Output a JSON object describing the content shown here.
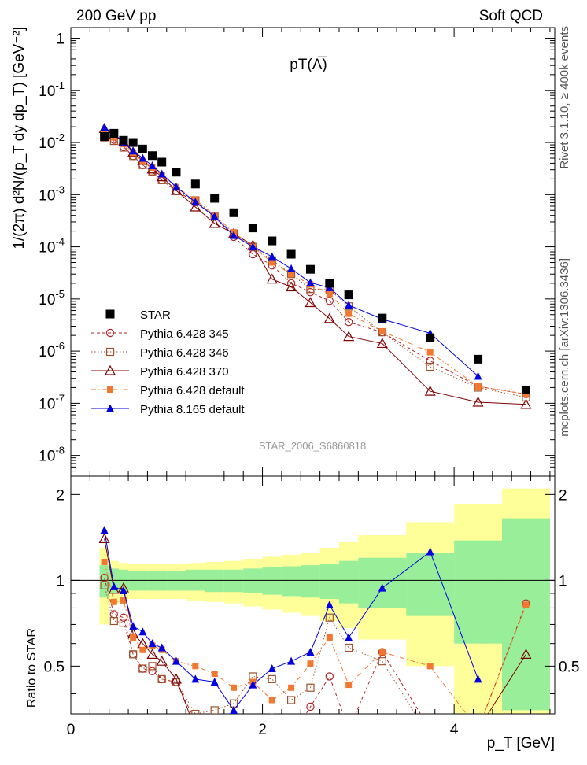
{
  "header": {
    "left": "200 GeV pp",
    "right": "Soft QCD",
    "side_right_top": "Rivet 3.1.10, ≥ 400k events",
    "side_right_bottom": "mcplots.cern.ch [arXiv:1306.3436]"
  },
  "chart_data": [
    {
      "type": "scatter",
      "panel": "main",
      "title": "pT(Λ̅)",
      "analysis_label": "STAR_2006_S6860818",
      "xlabel": "p_T [GeV]",
      "ylabel": "1/(2π) d²N/(p_T dy dp_T) [GeV⁻²]",
      "xlim": [
        0,
        5.05
      ],
      "ylim": [
        4e-09,
        1.6
      ],
      "yscale": "log",
      "y_tick_labels": [
        "10^-8",
        "10^-7",
        "10^-6",
        "10^-5",
        "10^-4",
        "10^-3",
        "10^-2",
        "10^-1",
        "1"
      ],
      "legend_position": "lower-left",
      "series": [
        {
          "name": "STAR",
          "color": "#000000",
          "marker": "square-filled",
          "line": "none",
          "x": [
            0.35,
            0.45,
            0.55,
            0.65,
            0.75,
            0.85,
            0.95,
            1.1,
            1.3,
            1.5,
            1.7,
            1.9,
            2.1,
            2.3,
            2.5,
            2.7,
            2.9,
            3.25,
            3.75,
            4.25,
            4.75
          ],
          "y": [
            0.013,
            0.015,
            0.011,
            0.01,
            0.0075,
            0.0056,
            0.0042,
            0.0027,
            0.0016,
            0.00085,
            0.00045,
            0.00023,
            0.00013,
            7.2e-05,
            3.7e-05,
            2e-05,
            1.2e-05,
            4.3e-06,
            1.8e-06,
            7e-07,
            1.8e-07
          ]
        },
        {
          "name": "Pythia 6.428 345",
          "color": "#b22222",
          "marker": "circle-open",
          "line": "dashed",
          "x": [
            0.35,
            0.45,
            0.55,
            0.65,
            0.75,
            0.85,
            0.95,
            1.1,
            1.3,
            1.5,
            1.7,
            1.9,
            2.1,
            2.3,
            2.5,
            2.7,
            2.9,
            3.25,
            3.75,
            4.25,
            4.75
          ],
          "y": [
            0.0133,
            0.0113,
            0.0083,
            0.0055,
            0.0037,
            0.0027,
            0.0019,
            0.00118,
            0.00072,
            0.00038,
            0.000155,
            7.2e-05,
            4.4e-05,
            2e-05,
            1.35e-05,
            9.2e-06,
            3.6e-06,
            2.3e-06,
            6.5e-07,
            2.1e-07,
            1.5e-07
          ]
        },
        {
          "name": "Pythia 6.428 346",
          "color": "#a0522d",
          "marker": "square-open",
          "line": "dotted",
          "x": [
            0.35,
            0.45,
            0.55,
            0.65,
            0.75,
            0.85,
            0.95,
            1.1,
            1.3,
            1.5,
            1.7,
            1.9,
            2.1,
            2.3,
            2.5,
            2.7,
            2.9,
            3.25,
            3.75,
            4.25,
            4.75
          ],
          "y": [
            0.0125,
            0.0107,
            0.008,
            0.0055,
            0.0037,
            0.0028,
            0.0019,
            0.00118,
            0.00078,
            0.00038,
            0.00018,
            0.0001,
            5.5e-05,
            3e-05,
            1.55e-05,
            1.5e-05,
            7.2e-06,
            2.3e-06,
            5e-07,
            2e-07,
            1.3e-07
          ]
        },
        {
          "name": "Pythia 6.428 370",
          "color": "#800000",
          "marker": "triangle-open",
          "line": "solid",
          "x": [
            0.35,
            0.45,
            0.55,
            0.65,
            0.75,
            0.85,
            0.95,
            1.1,
            1.3,
            1.5,
            1.7,
            1.9,
            2.1,
            2.3,
            2.5,
            2.7,
            2.9,
            3.25,
            3.75,
            4.25,
            4.75
          ],
          "y": [
            0.0185,
            0.014,
            0.0103,
            0.0065,
            0.0045,
            0.0031,
            0.0022,
            0.0012,
            0.00058,
            0.00028,
            0.00018,
            0.000107,
            2.4e-05,
            1.7e-05,
            8.5e-06,
            4.2e-06,
            1.9e-06,
            1.4e-06,
            1.7e-07,
            1.05e-07,
            9.5e-08
          ]
        },
        {
          "name": "Pythia 6.428 default",
          "color": "#f07830",
          "marker": "square-filled-small",
          "line": "dashdot",
          "x": [
            0.35,
            0.45,
            0.55,
            0.65,
            0.75,
            0.85,
            0.95,
            1.1,
            1.3,
            1.5,
            1.7,
            1.9,
            2.1,
            2.3,
            2.5,
            2.7,
            2.9,
            3.25,
            3.75,
            4.25,
            4.75
          ],
          "y": [
            0.015,
            0.0125,
            0.0093,
            0.0063,
            0.0043,
            0.0033,
            0.0024,
            0.0014,
            0.0008,
            0.0004,
            0.00019,
            0.0001,
            5e-05,
            3e-05,
            1.9e-05,
            1.25e-05,
            5.2e-06,
            2.4e-06,
            9.5e-07,
            2.1e-07,
            1.5e-07
          ]
        },
        {
          "name": "Pythia 8.165 default",
          "color": "#0000e0",
          "marker": "triangle-filled",
          "line": "solid",
          "x": [
            0.35,
            0.45,
            0.55,
            0.65,
            0.75,
            0.85,
            0.95,
            1.1,
            1.3,
            1.5,
            1.7,
            1.9,
            2.1,
            2.3,
            2.5,
            2.7,
            2.9,
            3.25,
            3.75,
            4.25
          ],
          "y": [
            0.0195,
            0.0145,
            0.0102,
            0.0069,
            0.005,
            0.0036,
            0.0025,
            0.0014,
            0.00072,
            0.00038,
            0.000165,
            0.0001,
            6.5e-05,
            3.8e-05,
            2.05e-05,
            1.65e-05,
            7.6e-06,
            4.1e-06,
            2.2e-06,
            3.3e-07
          ]
        }
      ]
    },
    {
      "type": "scatter",
      "panel": "ratio",
      "ylabel": "Ratio to STAR",
      "xlabel": "p_T [GeV]",
      "xlim": [
        0,
        5.05
      ],
      "ylim": [
        0.34,
        2.3
      ],
      "x_tick_labels": [
        "0",
        "2",
        "4"
      ],
      "y_tick_labels": [
        "0.5",
        "1",
        "2"
      ],
      "reference_line": 1,
      "uncertainty_bins": {
        "edges": [
          0.3,
          0.4,
          0.5,
          0.6,
          0.7,
          0.8,
          0.9,
          1.0,
          1.2,
          1.4,
          1.6,
          1.8,
          2.0,
          2.2,
          2.4,
          2.6,
          2.8,
          3.0,
          3.5,
          4.0,
          4.5,
          5.0
        ],
        "inner": [
          [
            0.87,
            1.13
          ],
          [
            0.9,
            1.1
          ],
          [
            0.91,
            1.09
          ],
          [
            0.92,
            1.08
          ],
          [
            0.92,
            1.08
          ],
          [
            0.92,
            1.08
          ],
          [
            0.92,
            1.08
          ],
          [
            0.92,
            1.08
          ],
          [
            0.92,
            1.09
          ],
          [
            0.91,
            1.09
          ],
          [
            0.91,
            1.09
          ],
          [
            0.9,
            1.1
          ],
          [
            0.89,
            1.11
          ],
          [
            0.88,
            1.12
          ],
          [
            0.87,
            1.13
          ],
          [
            0.86,
            1.14
          ],
          [
            0.83,
            1.17
          ],
          [
            0.8,
            1.2
          ],
          [
            0.75,
            1.25
          ],
          [
            0.6,
            1.38
          ],
          [
            0.35,
            1.65
          ]
        ],
        "outer": [
          [
            0.7,
            1.3
          ],
          [
            0.83,
            1.17
          ],
          [
            0.85,
            1.15
          ],
          [
            0.86,
            1.14
          ],
          [
            0.86,
            1.14
          ],
          [
            0.86,
            1.14
          ],
          [
            0.86,
            1.14
          ],
          [
            0.86,
            1.14
          ],
          [
            0.85,
            1.15
          ],
          [
            0.84,
            1.16
          ],
          [
            0.83,
            1.17
          ],
          [
            0.81,
            1.19
          ],
          [
            0.79,
            1.21
          ],
          [
            0.77,
            1.23
          ],
          [
            0.75,
            1.25
          ],
          [
            0.72,
            1.3
          ],
          [
            0.68,
            1.36
          ],
          [
            0.62,
            1.44
          ],
          [
            0.5,
            1.6
          ],
          [
            0.34,
            1.85
          ],
          [
            0.34,
            2.1
          ]
        ]
      },
      "series": [
        {
          "name": "Pythia 6.428 345",
          "color": "#b22222",
          "marker": "circle-open",
          "line": "dashed",
          "x": [
            0.35,
            0.45,
            0.55,
            0.65,
            0.75,
            0.85,
            0.95,
            1.1,
            1.3,
            1.5,
            1.7,
            1.9,
            2.1,
            2.3,
            2.5,
            2.7,
            2.9,
            3.25,
            3.75,
            4.25,
            4.75
          ],
          "y": [
            1.02,
            0.76,
            0.74,
            0.55,
            0.49,
            0.48,
            0.45,
            0.44,
            0.32,
            0.28,
            0.26,
            0.3,
            0.33,
            0.28,
            0.36,
            0.46,
            0.3,
            0.56,
            0.3,
            0.3,
            0.83
          ]
        },
        {
          "name": "Pythia 6.428 346",
          "color": "#a0522d",
          "marker": "square-open",
          "line": "dotted",
          "x": [
            0.35,
            0.45,
            0.55,
            0.65,
            0.75,
            0.85,
            0.95,
            1.1,
            1.3,
            1.5,
            1.7,
            1.9,
            2.1,
            2.3,
            2.5,
            2.7,
            2.9,
            3.25,
            3.75,
            4.25,
            4.75
          ],
          "y": [
            0.96,
            0.72,
            0.71,
            0.55,
            0.49,
            0.5,
            0.45,
            0.44,
            0.34,
            0.35,
            0.37,
            0.46,
            0.45,
            0.38,
            0.42,
            0.74,
            0.58,
            0.52,
            0.28,
            0.3,
            0.3
          ]
        },
        {
          "name": "Pythia 6.428 370",
          "color": "#800000",
          "marker": "triangle-open",
          "line": "solid",
          "x": [
            0.35,
            0.45,
            0.55,
            0.65,
            0.75,
            0.85,
            0.95,
            1.1,
            1.3,
            1.5,
            1.7,
            1.9,
            2.1,
            2.3,
            2.5,
            2.7,
            2.9,
            3.25,
            3.75,
            4.25,
            4.75
          ],
          "y": [
            1.4,
            0.93,
            0.94,
            0.65,
            0.6,
            0.55,
            0.52,
            0.45,
            0.3,
            0.3,
            0.3,
            0.3,
            0.3,
            0.3,
            0.3,
            0.3,
            0.3,
            0.3,
            0.3,
            0.3,
            0.55
          ]
        },
        {
          "name": "Pythia 6.428 default",
          "color": "#f07830",
          "marker": "square-filled-small",
          "line": "dashdot",
          "x": [
            0.35,
            0.45,
            0.55,
            0.65,
            0.75,
            0.85,
            0.95,
            1.1,
            1.3,
            1.5,
            1.7,
            1.9,
            2.1,
            2.3,
            2.5,
            2.7,
            2.9,
            3.25,
            3.75,
            4.25,
            4.75
          ],
          "y": [
            1.16,
            0.84,
            0.85,
            0.63,
            0.57,
            0.59,
            0.57,
            0.52,
            0.5,
            0.47,
            0.42,
            0.44,
            0.38,
            0.42,
            0.51,
            0.63,
            0.43,
            0.56,
            0.5,
            0.3,
            0.82
          ]
        },
        {
          "name": "Pythia 8.165 default",
          "color": "#0000e0",
          "marker": "triangle-filled",
          "line": "solid",
          "x": [
            0.35,
            0.45,
            0.55,
            0.65,
            0.75,
            0.85,
            0.95,
            1.1,
            1.3,
            1.5,
            1.7,
            1.9,
            2.1,
            2.3,
            2.5,
            2.7,
            2.9,
            3.25,
            3.75,
            4.25
          ],
          "y": [
            1.5,
            0.95,
            0.92,
            0.69,
            0.66,
            0.6,
            0.58,
            0.52,
            0.45,
            0.44,
            0.35,
            0.43,
            0.49,
            0.52,
            0.56,
            0.82,
            0.63,
            0.94,
            1.26,
            0.45
          ]
        }
      ]
    }
  ]
}
